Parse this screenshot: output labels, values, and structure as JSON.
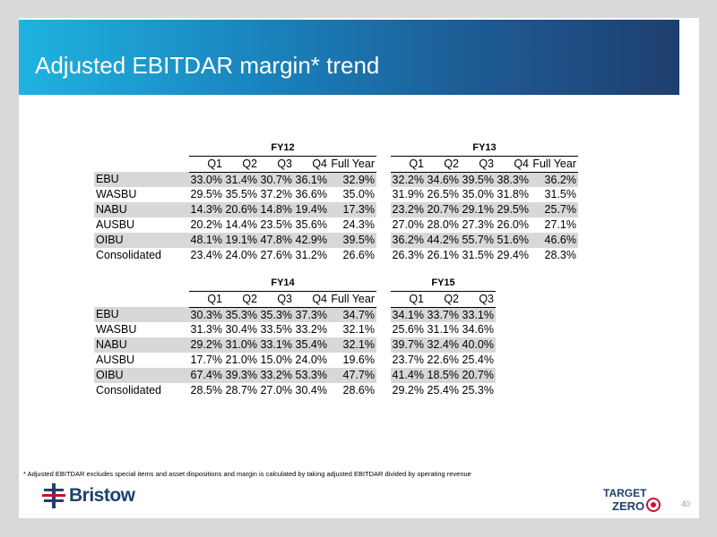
{
  "title": "Adjusted EBITDAR margin* trend",
  "tables": [
    {
      "left": {
        "year": "FY12",
        "columns": [
          "Q1",
          "Q2",
          "Q3",
          "Q4",
          "Full Year"
        ],
        "rows": [
          [
            "33.0%",
            "31.4%",
            "30.7%",
            "36.1%",
            "32.9%"
          ],
          [
            "29.5%",
            "35.5%",
            "37.2%",
            "36.6%",
            "35.0%"
          ],
          [
            "14.3%",
            "20.6%",
            "14.8%",
            "19.4%",
            "17.3%"
          ],
          [
            "20.2%",
            "14.4%",
            "23.5%",
            "35.6%",
            "24.3%"
          ],
          [
            "48.1%",
            "19.1%",
            "47.8%",
            "42.9%",
            "39.5%"
          ],
          [
            "23.4%",
            "24.0%",
            "27.6%",
            "31.2%",
            "26.6%"
          ]
        ]
      },
      "right": {
        "year": "FY13",
        "columns": [
          "Q1",
          "Q2",
          "Q3",
          "Q4",
          "Full Year"
        ],
        "rows": [
          [
            "32.2%",
            "34.6%",
            "39.5%",
            "38.3%",
            "36.2%"
          ],
          [
            "31.9%",
            "26.5%",
            "35.0%",
            "31.8%",
            "31.5%"
          ],
          [
            "23.2%",
            "20.7%",
            "29.1%",
            "29.5%",
            "25.7%"
          ],
          [
            "27.0%",
            "28.0%",
            "27.3%",
            "26.0%",
            "27.1%"
          ],
          [
            "36.2%",
            "44.2%",
            "55.7%",
            "51.6%",
            "46.6%"
          ],
          [
            "26.3%",
            "26.1%",
            "31.5%",
            "29.4%",
            "28.3%"
          ]
        ]
      }
    },
    {
      "left": {
        "year": "FY14",
        "columns": [
          "Q1",
          "Q2",
          "Q3",
          "Q4",
          "Full Year"
        ],
        "rows": [
          [
            "30.3%",
            "35.3%",
            "35.3%",
            "37.3%",
            "34.7%"
          ],
          [
            "31.3%",
            "30.4%",
            "33.5%",
            "33.2%",
            "32.1%"
          ],
          [
            "29.2%",
            "31.0%",
            "33.1%",
            "35.4%",
            "32.1%"
          ],
          [
            "17.7%",
            "21.0%",
            "15.0%",
            "24.0%",
            "19.6%"
          ],
          [
            "67.4%",
            "39.3%",
            "33.2%",
            "53.3%",
            "47.7%"
          ],
          [
            "28.5%",
            "28.7%",
            "27.0%",
            "30.4%",
            "28.6%"
          ]
        ]
      },
      "right": {
        "year": "FY15",
        "columns": [
          "Q1",
          "Q2",
          "Q3"
        ],
        "rows": [
          [
            "34.1%",
            "33.7%",
            "33.1%"
          ],
          [
            "25.6%",
            "31.1%",
            "34.6%"
          ],
          [
            "39.7%",
            "32.4%",
            "40.0%"
          ],
          [
            "23.7%",
            "22.6%",
            "25.4%"
          ],
          [
            "41.4%",
            "18.5%",
            "20.7%"
          ],
          [
            "29.2%",
            "25.4%",
            "25.3%"
          ]
        ]
      }
    }
  ],
  "row_labels": [
    "EBU",
    "WASBU",
    "NABU",
    "AUSBU",
    "OIBU",
    "Consolidated"
  ],
  "footnote": "* Adjusted EBITDAR excludes special items and asset dispositions and margin is calculated by taking adjusted EBITDAR divided by operating revenue",
  "logo_text": "Bristow",
  "target_zero": {
    "line1": "TARGET",
    "line2": "ZERO"
  },
  "page_number": "40",
  "colors": {
    "banner_start": "#1fb3e0",
    "banner_end": "#1f3f6e",
    "row_shade": "#d8d8d8",
    "bristow_blue": "#1f3f6e",
    "bristow_red": "#c8102e"
  }
}
